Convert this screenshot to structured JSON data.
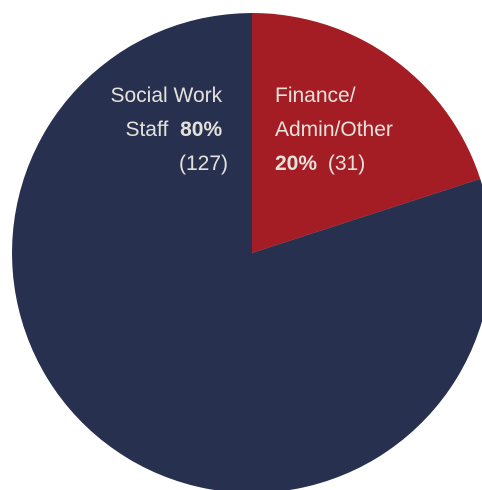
{
  "chart_data": {
    "type": "pie",
    "slices": [
      {
        "label_lines": [
          "Finance/",
          "Admin/Other"
        ],
        "percent_text": "20%",
        "count_text": "(31)",
        "value": 31,
        "percent": 20,
        "color": "#a51d24"
      },
      {
        "label_lines": [
          "Social Work",
          "Staff"
        ],
        "percent_text": "80%",
        "count_text": "(127)",
        "value": 127,
        "percent": 80,
        "color": "#27304f"
      }
    ],
    "start": "12 o'clock",
    "direction": "clockwise",
    "legend": "none",
    "label_color": "#e4e1db"
  }
}
